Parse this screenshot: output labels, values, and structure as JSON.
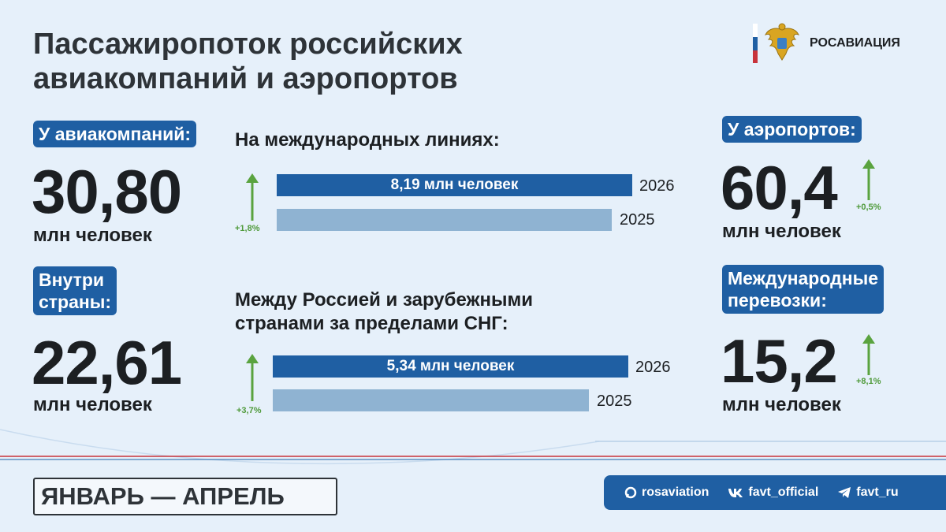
{
  "header": {
    "title_line1": "Пассажиропоток российских",
    "title_line2": "авиакомпаний и аэропортов",
    "logo_text": "РОСАВИАЦИЯ"
  },
  "airlines": {
    "label": "У авиакомпаний:",
    "value": "30,80",
    "unit": "млн человек"
  },
  "domestic": {
    "label_line1": "Внутри",
    "label_line2": "страны:",
    "value": "22,61",
    "unit": "млн человек"
  },
  "international_lines": {
    "heading": "На международных линиях:",
    "bar_label": "8,19 млн человек",
    "year_current": "2026",
    "year_previous": "2025",
    "change": "+1,8%"
  },
  "non_cis": {
    "heading_line1": "Между Россией и зарубежными",
    "heading_line2": "странами за пределами СНГ:",
    "bar_label": "5,34 млн человек",
    "year_current": "2026",
    "year_previous": "2025",
    "change": "+3,7%"
  },
  "airports": {
    "label": "У аэропортов:",
    "value": "60,4",
    "unit": "млн человек",
    "change": "+0,5%"
  },
  "intl_transport": {
    "label_line1": "Международные",
    "label_line2": "перевозки:",
    "value": "15,2",
    "unit": "млн человек",
    "change": "+8,1%"
  },
  "footer": {
    "period": "ЯНВАРЬ —  АПРЕЛЬ",
    "socials": [
      {
        "icon": "rosaviation-icon",
        "label": "rosaviation"
      },
      {
        "icon": "vk-icon",
        "label": "favt_official"
      },
      {
        "icon": "telegram-icon",
        "label": "favt_ru"
      }
    ]
  },
  "colors": {
    "accent": "#1f5fa3",
    "bar_light": "#8fb3d2",
    "growth": "#4f9a3a",
    "background": "#e6f0fa"
  }
}
